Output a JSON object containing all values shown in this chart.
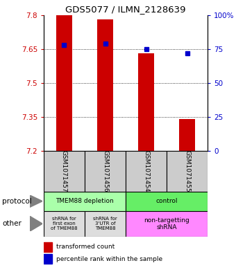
{
  "title": "GDS5077 / ILMN_2128639",
  "samples": [
    "GSM1071457",
    "GSM1071456",
    "GSM1071454",
    "GSM1071455"
  ],
  "bar_values": [
    7.8,
    7.78,
    7.63,
    7.34
  ],
  "bar_bottom": 7.2,
  "percentile_values": [
    78,
    79,
    75,
    72
  ],
  "ylim_left": [
    7.2,
    7.8
  ],
  "ylim_right": [
    0,
    100
  ],
  "yticks_left": [
    7.2,
    7.35,
    7.5,
    7.65,
    7.8
  ],
  "yticks_right": [
    0,
    25,
    50,
    75,
    100
  ],
  "ytick_labels_right": [
    "0",
    "25",
    "50",
    "75",
    "100%"
  ],
  "bar_color": "#cc0000",
  "dot_color": "#0000cc",
  "protocol_labels": [
    "TMEM88 depletion",
    "control"
  ],
  "protocol_color_left": "#aaffaa",
  "protocol_color_right": "#66ee66",
  "other_labels": [
    "shRNA for\nfirst exon\nof TMEM88",
    "shRNA for\n3'UTR of\nTMEM88",
    "non-targetting\nshRNA"
  ],
  "other_color_gray": "#dddddd",
  "other_color_pink": "#ff88ff",
  "sample_box_color": "#cccccc",
  "label_protocol": "protocol",
  "label_other": "other",
  "legend_bar_label": "transformed count",
  "legend_dot_label": "percentile rank within the sample"
}
